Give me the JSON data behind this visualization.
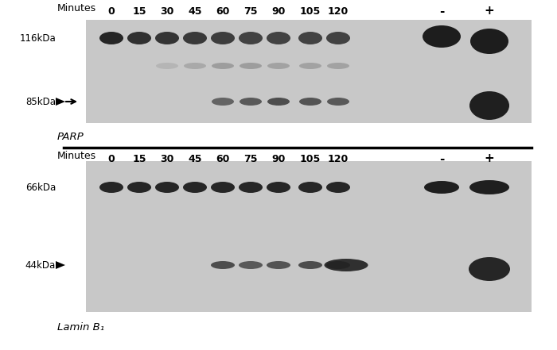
{
  "title_bg": "#f0f0f0",
  "bg_color": "#ffffff",
  "panel_bg": "#e8e8e8",
  "time_labels": [
    "0",
    "15",
    "30",
    "45",
    "60",
    "75",
    "90",
    "105",
    "120",
    "-",
    "+"
  ],
  "parp_label": "PARP",
  "parp_116_label": "116kDa",
  "parp_85_label": "85kDa",
  "parp_minutes_label": "Minutes",
  "lamin_label": "Lamin B₁",
  "lamin_66_label": "66kDa",
  "lamin_44_label": "44kDa",
  "lamin_minutes_label": "Minutes",
  "band_color_dark": "#111111",
  "band_color_mid": "#555555",
  "band_color_light": "#999999",
  "gel_bg": "#d0d0d0"
}
